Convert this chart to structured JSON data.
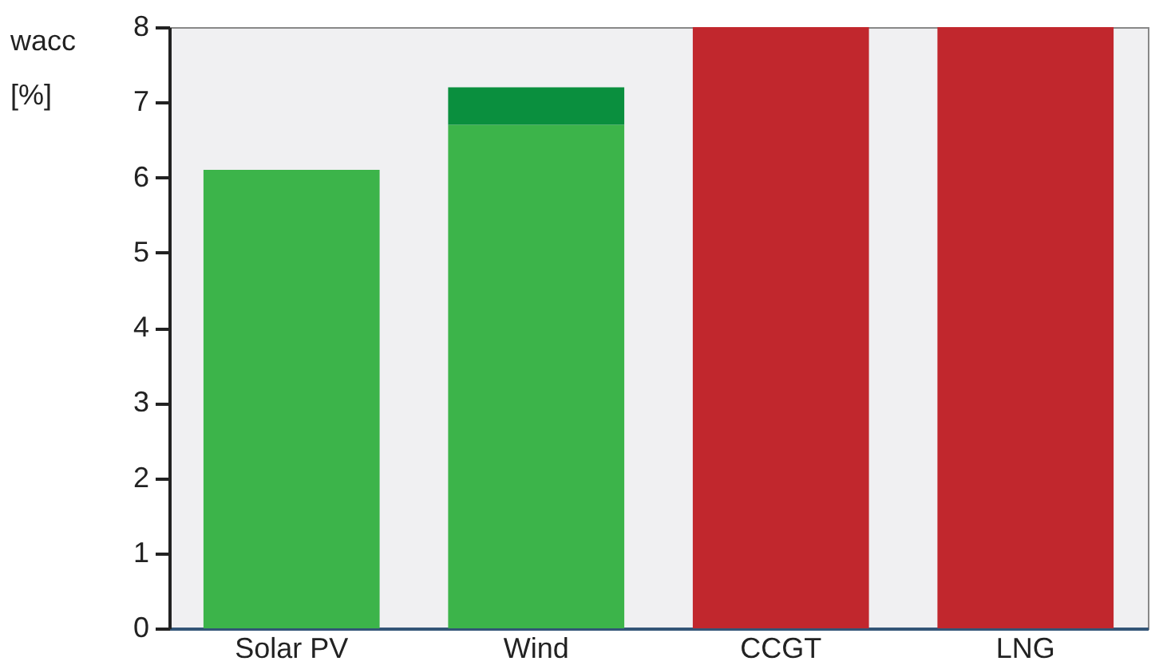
{
  "chart_data": {
    "type": "bar",
    "ylabel": "wacc [%]",
    "categories": [
      "Solar PV",
      "Wind",
      "CCGT",
      "LNG"
    ],
    "stacked": true,
    "series": [
      {
        "color": "#3cb44a",
        "values": [
          6.1,
          6.7,
          null,
          null
        ]
      },
      {
        "color": "#0a8f3e",
        "values": [
          null,
          0.5,
          null,
          null
        ]
      },
      {
        "color": "#c1272d",
        "values": [
          null,
          null,
          8,
          8
        ]
      }
    ],
    "ylim": [
      0,
      8
    ],
    "yticks": [
      0,
      1,
      2,
      3,
      4,
      5,
      6,
      7,
      8
    ],
    "grid": false,
    "legend": false
  }
}
